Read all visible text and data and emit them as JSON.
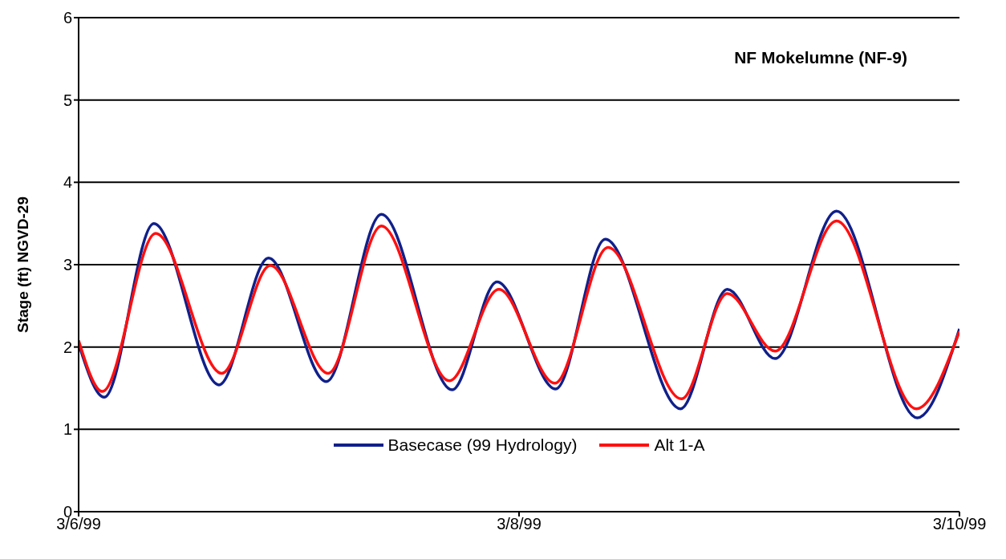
{
  "chart_data": {
    "type": "line",
    "title": "NF Mokelumne (NF-9)",
    "ylabel": "Stage (ft) NGVD-29",
    "xlim": [
      "1999-03-06",
      "1999-03-10"
    ],
    "xticks": [
      {
        "value": "1999-03-06",
        "label": "3/6/99"
      },
      {
        "value": "1999-03-08",
        "label": "3/8/99"
      },
      {
        "value": "1999-03-10",
        "label": "3/10/99"
      }
    ],
    "ylim": [
      0,
      6
    ],
    "yticks": [
      0,
      1,
      2,
      3,
      4,
      5,
      6
    ],
    "grid": "y",
    "legend": "bottom",
    "marker": "none",
    "line_style": "solid",
    "series": [
      {
        "name": "Basecase (99 Hydrology)",
        "color": "#10208a",
        "x": [
          "1999-03-06T00:00",
          "1999-03-06T02:48",
          "1999-03-06T08:12",
          "1999-03-06T15:18",
          "1999-03-06T20:42",
          "1999-03-07T03:00",
          "1999-03-07T09:00",
          "1999-03-07T16:42",
          "1999-03-07T21:36",
          "1999-03-08T04:00",
          "1999-03-08T09:24",
          "1999-03-08T17:36",
          "1999-03-08T22:42",
          "1999-03-09T03:54",
          "1999-03-09T10:36",
          "1999-03-09T19:24",
          "1999-03-10T00:00"
        ],
        "values": [
          2.04,
          1.39,
          3.5,
          1.54,
          3.08,
          1.58,
          3.61,
          1.48,
          2.79,
          1.49,
          3.31,
          1.25,
          2.7,
          1.86,
          3.65,
          1.14,
          2.22
        ]
      },
      {
        "name": "Alt 1-A",
        "color": "#ff1010",
        "x": [
          "1999-03-06T00:00",
          "1999-03-06T02:36",
          "1999-03-06T08:24",
          "1999-03-06T15:36",
          "1999-03-06T20:54",
          "1999-03-07T03:12",
          "1999-03-07T09:00",
          "1999-03-07T16:24",
          "1999-03-07T21:48",
          "1999-03-08T03:54",
          "1999-03-08T09:42",
          "1999-03-08T17:42",
          "1999-03-08T22:42",
          "1999-03-09T03:54",
          "1999-03-09T10:36",
          "1999-03-09T19:18",
          "1999-03-10T00:00"
        ],
        "values": [
          2.08,
          1.46,
          3.38,
          1.68,
          2.99,
          1.68,
          3.47,
          1.59,
          2.7,
          1.56,
          3.21,
          1.37,
          2.65,
          1.95,
          3.53,
          1.25,
          2.19
        ]
      }
    ]
  }
}
